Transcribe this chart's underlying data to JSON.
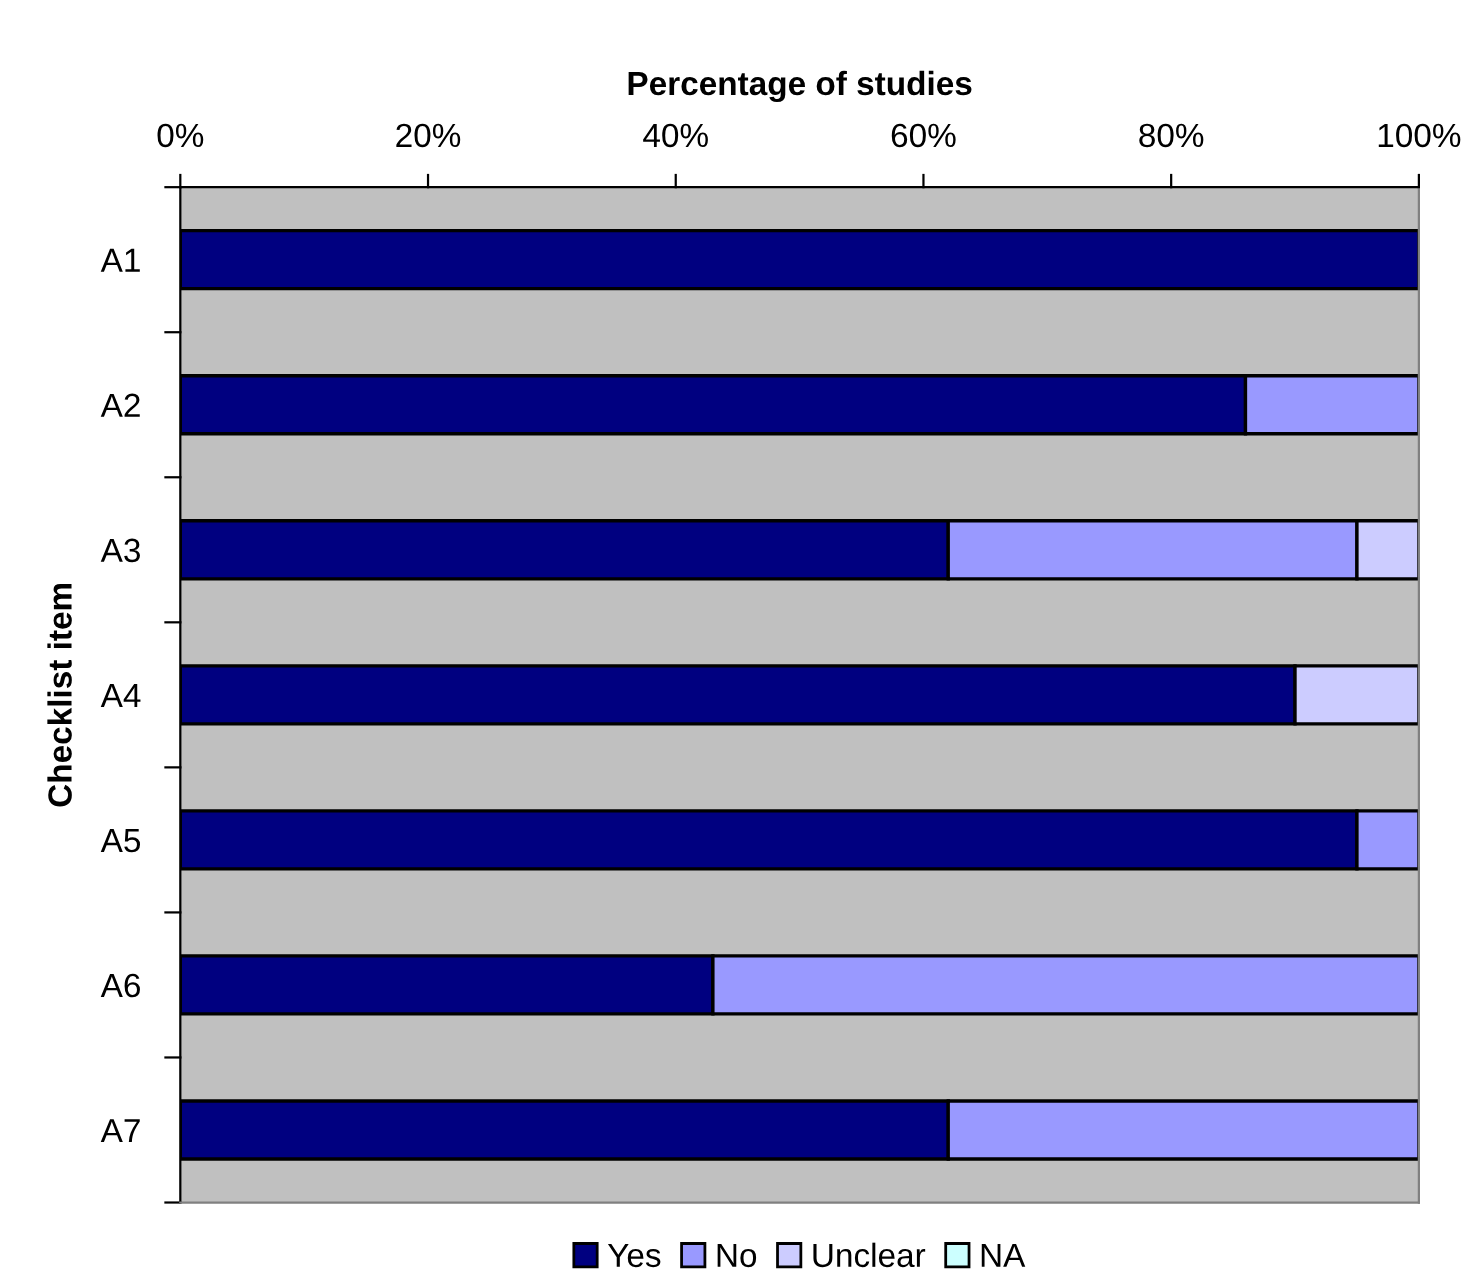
{
  "chart_data": {
    "type": "bar",
    "orientation": "horizontal",
    "stacked": true,
    "xlabel": "Percentage of studies",
    "ylabel": "Checklist item",
    "categories": [
      "A1",
      "A2",
      "A3",
      "A4",
      "A5",
      "A6",
      "A7"
    ],
    "series": [
      {
        "name": "Yes",
        "color": "#000080",
        "values": [
          100,
          86,
          62,
          90,
          95,
          43,
          62
        ]
      },
      {
        "name": "No",
        "color": "#9999ff",
        "values": [
          0,
          14,
          33,
          0,
          5,
          57,
          38
        ]
      },
      {
        "name": "Unclear",
        "color": "#ccccff",
        "values": [
          0,
          0,
          5,
          10,
          0,
          0,
          0
        ]
      },
      {
        "name": "NA",
        "color": "#ccffff",
        "values": [
          0,
          0,
          0,
          0,
          0,
          0,
          0
        ]
      }
    ],
    "xlim": [
      0,
      100
    ],
    "xticks": [
      {
        "value": 0,
        "label": "0%"
      },
      {
        "value": 20,
        "label": "20%"
      },
      {
        "value": 40,
        "label": "40%"
      },
      {
        "value": 60,
        "label": "60%"
      },
      {
        "value": 80,
        "label": "80%"
      },
      {
        "value": 100,
        "label": "100%"
      }
    ],
    "grid": false,
    "legend": "bottom"
  }
}
